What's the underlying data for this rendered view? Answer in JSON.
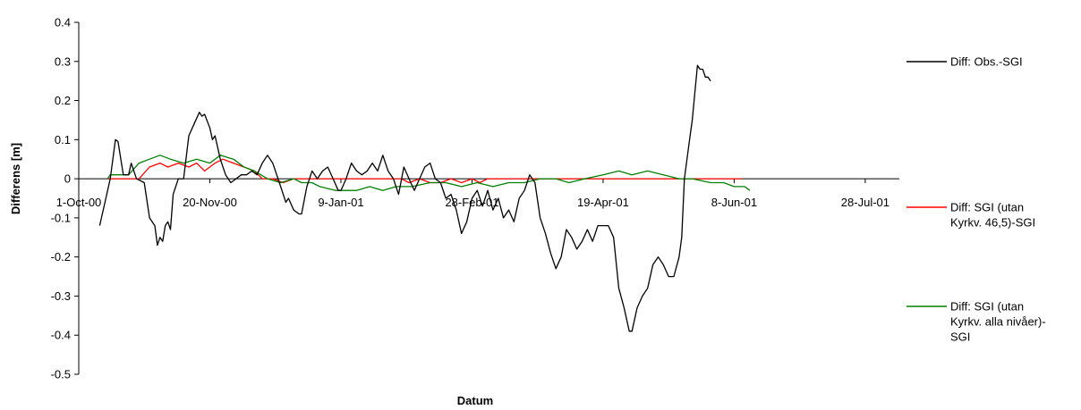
{
  "chart_data": {
    "type": "line",
    "title": "",
    "xlabel": "Datum",
    "ylabel": "Differens [m]",
    "ylim": [
      -0.5,
      0.4
    ],
    "yticks": [
      0.4,
      0.3,
      0.2,
      0.1,
      0,
      -0.1,
      -0.2,
      -0.3,
      -0.4,
      -0.5
    ],
    "ytick_labels": [
      "0.4",
      "0.3",
      "0.2",
      "0.1",
      "0",
      "-0.1",
      "-0.2",
      "-0.3",
      "-0.4",
      "-0.5"
    ],
    "x_type": "date",
    "xlim": [
      "2000-10-01",
      "2001-08-10"
    ],
    "xticks": [
      "2000-10-01",
      "2000-11-20",
      "2001-01-09",
      "2001-02-28",
      "2001-04-19",
      "2001-06-08",
      "2001-07-28"
    ],
    "xtick_labels": [
      "1-Oct-00",
      "20-Nov-00",
      "9-Jan-01",
      "28-Feb-01",
      "19-Apr-01",
      "8-Jun-01",
      "28-Jul-01"
    ],
    "grid": false,
    "legend_position": "right",
    "series": [
      {
        "name": "Diff: Obs.-SGI",
        "legend_lines": [
          "Diff: Obs.-SGI"
        ],
        "color": "#000000",
        "points": [
          [
            "2000-10-09",
            -0.12
          ],
          [
            "2000-10-13",
            0.0
          ],
          [
            "2000-10-15",
            0.1
          ],
          [
            "2000-10-16",
            0.095
          ],
          [
            "2000-10-18",
            0.01
          ],
          [
            "2000-10-20",
            0.01
          ],
          [
            "2000-10-21",
            0.04
          ],
          [
            "2000-10-23",
            0.0
          ],
          [
            "2000-10-26",
            -0.01
          ],
          [
            "2000-10-28",
            -0.1
          ],
          [
            "2000-10-30",
            -0.12
          ],
          [
            "2000-10-31",
            -0.17
          ],
          [
            "2000-11-01",
            -0.15
          ],
          [
            "2000-11-02",
            -0.16
          ],
          [
            "2000-11-03",
            -0.12
          ],
          [
            "2000-11-04",
            -0.11
          ],
          [
            "2000-11-05",
            -0.13
          ],
          [
            "2000-11-06",
            -0.04
          ],
          [
            "2000-11-08",
            0.0
          ],
          [
            "2000-11-10",
            0.0
          ],
          [
            "2000-11-12",
            0.11
          ],
          [
            "2000-11-14",
            0.14
          ],
          [
            "2000-11-16",
            0.17
          ],
          [
            "2000-11-17",
            0.16
          ],
          [
            "2000-11-18",
            0.165
          ],
          [
            "2000-11-20",
            0.13
          ],
          [
            "2000-11-21",
            0.1
          ],
          [
            "2000-11-22",
            0.11
          ],
          [
            "2000-11-24",
            0.05
          ],
          [
            "2000-11-26",
            0.01
          ],
          [
            "2000-11-28",
            -0.01
          ],
          [
            "2000-11-30",
            0.0
          ],
          [
            "2000-12-02",
            0.01
          ],
          [
            "2000-12-04",
            0.01
          ],
          [
            "2000-12-06",
            0.02
          ],
          [
            "2000-12-08",
            0.01
          ],
          [
            "2000-12-10",
            0.04
          ],
          [
            "2000-12-12",
            0.06
          ],
          [
            "2000-12-14",
            0.04
          ],
          [
            "2000-12-16",
            0.0
          ],
          [
            "2000-12-18",
            -0.04
          ],
          [
            "2000-12-19",
            -0.06
          ],
          [
            "2000-12-20",
            -0.05
          ],
          [
            "2000-12-22",
            -0.08
          ],
          [
            "2000-12-24",
            -0.09
          ],
          [
            "2000-12-25",
            -0.09
          ],
          [
            "2000-12-27",
            -0.02
          ],
          [
            "2000-12-29",
            0.02
          ],
          [
            "2000-12-31",
            0.0
          ],
          [
            "2001-01-02",
            0.02
          ],
          [
            "2001-01-04",
            0.03
          ],
          [
            "2001-01-06",
            0.0
          ],
          [
            "2001-01-08",
            -0.03
          ],
          [
            "2001-01-09",
            -0.03
          ],
          [
            "2001-01-11",
            0.0
          ],
          [
            "2001-01-13",
            0.04
          ],
          [
            "2001-01-15",
            0.02
          ],
          [
            "2001-01-17",
            0.01
          ],
          [
            "2001-01-19",
            0.02
          ],
          [
            "2001-01-21",
            0.04
          ],
          [
            "2001-01-23",
            0.02
          ],
          [
            "2001-01-25",
            0.06
          ],
          [
            "2001-01-27",
            0.02
          ],
          [
            "2001-01-29",
            0.0
          ],
          [
            "2001-01-31",
            -0.04
          ],
          [
            "2001-02-02",
            0.03
          ],
          [
            "2001-02-04",
            0.0
          ],
          [
            "2001-02-06",
            -0.03
          ],
          [
            "2001-02-08",
            0.0
          ],
          [
            "2001-02-10",
            0.03
          ],
          [
            "2001-02-12",
            0.04
          ],
          [
            "2001-02-14",
            0.0
          ],
          [
            "2001-02-16",
            -0.01
          ],
          [
            "2001-02-18",
            -0.05
          ],
          [
            "2001-02-20",
            -0.04
          ],
          [
            "2001-02-22",
            -0.08
          ],
          [
            "2001-02-24",
            -0.14
          ],
          [
            "2001-02-26",
            -0.11
          ],
          [
            "2001-02-28",
            -0.05
          ],
          [
            "2001-03-02",
            -0.03
          ],
          [
            "2001-03-04",
            -0.07
          ],
          [
            "2001-03-06",
            -0.03
          ],
          [
            "2001-03-08",
            -0.08
          ],
          [
            "2001-03-10",
            -0.05
          ],
          [
            "2001-03-12",
            -0.1
          ],
          [
            "2001-03-14",
            -0.08
          ],
          [
            "2001-03-16",
            -0.11
          ],
          [
            "2001-03-18",
            -0.05
          ],
          [
            "2001-03-20",
            -0.03
          ],
          [
            "2001-03-22",
            0.01
          ],
          [
            "2001-03-24",
            -0.01
          ],
          [
            "2001-03-26",
            -0.1
          ],
          [
            "2001-03-28",
            -0.14
          ],
          [
            "2001-03-30",
            -0.19
          ],
          [
            "2001-04-01",
            -0.23
          ],
          [
            "2001-04-03",
            -0.2
          ],
          [
            "2001-04-05",
            -0.13
          ],
          [
            "2001-04-07",
            -0.15
          ],
          [
            "2001-04-09",
            -0.18
          ],
          [
            "2001-04-11",
            -0.16
          ],
          [
            "2001-04-13",
            -0.13
          ],
          [
            "2001-04-15",
            -0.16
          ],
          [
            "2001-04-17",
            -0.12
          ],
          [
            "2001-04-19",
            -0.12
          ],
          [
            "2001-04-21",
            -0.12
          ],
          [
            "2001-04-23",
            -0.15
          ],
          [
            "2001-04-25",
            -0.28
          ],
          [
            "2001-04-27",
            -0.33
          ],
          [
            "2001-04-29",
            -0.39
          ],
          [
            "2001-04-30",
            -0.39
          ],
          [
            "2001-05-02",
            -0.33
          ],
          [
            "2001-05-04",
            -0.3
          ],
          [
            "2001-05-06",
            -0.28
          ],
          [
            "2001-05-08",
            -0.22
          ],
          [
            "2001-05-10",
            -0.2
          ],
          [
            "2001-05-12",
            -0.22
          ],
          [
            "2001-05-14",
            -0.25
          ],
          [
            "2001-05-16",
            -0.25
          ],
          [
            "2001-05-18",
            -0.2
          ],
          [
            "2001-05-19",
            -0.15
          ],
          [
            "2001-05-20",
            0.0
          ],
          [
            "2001-05-22",
            0.1
          ],
          [
            "2001-05-23",
            0.15
          ],
          [
            "2001-05-25",
            0.29
          ],
          [
            "2001-05-26",
            0.28
          ],
          [
            "2001-05-27",
            0.28
          ],
          [
            "2001-05-28",
            0.26
          ],
          [
            "2001-05-29",
            0.26
          ],
          [
            "2001-05-30",
            0.25
          ]
        ]
      },
      {
        "name": "Diff: SGI (utan Kyrkv. 46,5)-SGI",
        "legend_lines": [
          "Diff: SGI (utan",
          "Kyrkv. 46,5)-SGI"
        ],
        "color": "#ff0000",
        "points": [
          [
            "2000-10-12",
            0.0
          ],
          [
            "2000-10-24",
            0.0
          ],
          [
            "2000-10-28",
            0.03
          ],
          [
            "2000-11-01",
            0.04
          ],
          [
            "2000-11-04",
            0.03
          ],
          [
            "2000-11-08",
            0.04
          ],
          [
            "2000-11-12",
            0.03
          ],
          [
            "2000-11-15",
            0.04
          ],
          [
            "2000-11-18",
            0.02
          ],
          [
            "2000-11-22",
            0.04
          ],
          [
            "2000-11-25",
            0.05
          ],
          [
            "2000-11-29",
            0.04
          ],
          [
            "2000-12-03",
            0.03
          ],
          [
            "2000-12-07",
            0.02
          ],
          [
            "2000-12-10",
            0.0
          ],
          [
            "2000-12-14",
            0.0
          ],
          [
            "2000-12-18",
            -0.01
          ],
          [
            "2000-12-22",
            0.0
          ],
          [
            "2001-02-01",
            0.0
          ],
          [
            "2001-02-04",
            -0.01
          ],
          [
            "2001-02-08",
            0.0
          ],
          [
            "2001-02-12",
            -0.01
          ],
          [
            "2001-02-16",
            -0.01
          ],
          [
            "2001-02-20",
            0.0
          ],
          [
            "2001-02-24",
            -0.01
          ],
          [
            "2001-02-28",
            0.0
          ],
          [
            "2001-03-03",
            -0.01
          ],
          [
            "2001-03-06",
            0.0
          ],
          [
            "2001-06-11",
            0.0
          ]
        ]
      },
      {
        "name": "Diff: SGI (utan Kyrkv. alla nivåer)-SGI",
        "legend_lines": [
          "Diff: SGI (utan",
          "Kyrkv. alla nivåer)-",
          "SGI"
        ],
        "color": "#008000",
        "points": [
          [
            "2000-10-12",
            0.0
          ],
          [
            "2000-10-13",
            0.01
          ],
          [
            "2000-10-20",
            0.01
          ],
          [
            "2000-10-24",
            0.04
          ],
          [
            "2000-10-28",
            0.05
          ],
          [
            "2000-11-01",
            0.06
          ],
          [
            "2000-11-05",
            0.05
          ],
          [
            "2000-11-10",
            0.04
          ],
          [
            "2000-11-15",
            0.05
          ],
          [
            "2000-11-20",
            0.04
          ],
          [
            "2000-11-24",
            0.06
          ],
          [
            "2000-11-29",
            0.05
          ],
          [
            "2000-12-03",
            0.03
          ],
          [
            "2000-12-07",
            0.02
          ],
          [
            "2000-12-12",
            0.0
          ],
          [
            "2000-12-17",
            -0.01
          ],
          [
            "2000-12-22",
            0.0
          ],
          [
            "2000-12-25",
            -0.01
          ],
          [
            "2000-12-29",
            -0.01
          ],
          [
            "2001-01-01",
            -0.02
          ],
          [
            "2001-01-07",
            -0.03
          ],
          [
            "2001-01-15",
            -0.03
          ],
          [
            "2001-01-20",
            -0.02
          ],
          [
            "2001-01-25",
            -0.03
          ],
          [
            "2001-01-30",
            -0.02
          ],
          [
            "2001-02-05",
            -0.02
          ],
          [
            "2001-02-12",
            -0.01
          ],
          [
            "2001-02-18",
            -0.01
          ],
          [
            "2001-02-24",
            -0.02
          ],
          [
            "2001-03-02",
            -0.01
          ],
          [
            "2001-03-08",
            -0.02
          ],
          [
            "2001-03-14",
            -0.01
          ],
          [
            "2001-03-20",
            -0.01
          ],
          [
            "2001-03-26",
            0.0
          ],
          [
            "2001-04-01",
            0.0
          ],
          [
            "2001-04-06",
            -0.01
          ],
          [
            "2001-04-12",
            0.0
          ],
          [
            "2001-04-19",
            0.01
          ],
          [
            "2001-04-25",
            0.02
          ],
          [
            "2001-04-30",
            0.01
          ],
          [
            "2001-05-06",
            0.02
          ],
          [
            "2001-05-12",
            0.01
          ],
          [
            "2001-05-18",
            0.0
          ],
          [
            "2001-05-23",
            0.0
          ],
          [
            "2001-05-30",
            -0.01
          ],
          [
            "2001-06-04",
            -0.01
          ],
          [
            "2001-06-08",
            -0.02
          ],
          [
            "2001-06-12",
            -0.02
          ],
          [
            "2001-06-14",
            -0.03
          ]
        ]
      }
    ]
  }
}
